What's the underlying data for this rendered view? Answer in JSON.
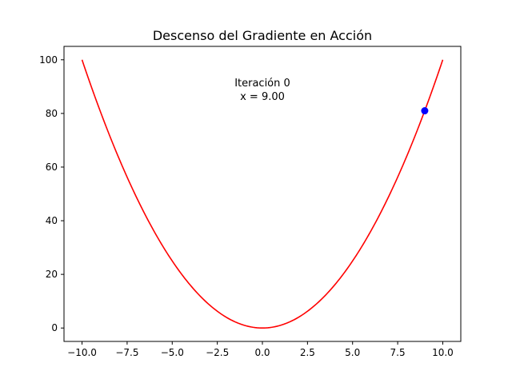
{
  "chart_data": {
    "type": "line",
    "title": "Descenso del Gradiente en Acción",
    "xlabel": "",
    "ylabel": "",
    "xlim": [
      -11.0,
      11.0
    ],
    "ylim": [
      -5.0,
      105.0
    ],
    "grid": false,
    "x_ticks": [
      -10.0,
      -7.5,
      -5.0,
      -2.5,
      0.0,
      2.5,
      5.0,
      7.5,
      10.0
    ],
    "x_tick_labels": [
      "−10.0",
      "−7.5",
      "−5.0",
      "−2.5",
      "0.0",
      "2.5",
      "5.0",
      "7.5",
      "10.0"
    ],
    "y_ticks": [
      0,
      20,
      40,
      60,
      80,
      100
    ],
    "y_tick_labels": [
      "0",
      "20",
      "40",
      "60",
      "80",
      "100"
    ],
    "series": [
      {
        "kind": "curve",
        "function": "x^2",
        "x_range": [
          -10,
          10
        ],
        "color": "#ff0000"
      },
      {
        "kind": "point",
        "x": 9.0,
        "y": 81.0,
        "color": "#0000ff"
      }
    ],
    "annotation": {
      "lines": [
        "Iteración 0",
        "x = 9.00"
      ]
    }
  }
}
